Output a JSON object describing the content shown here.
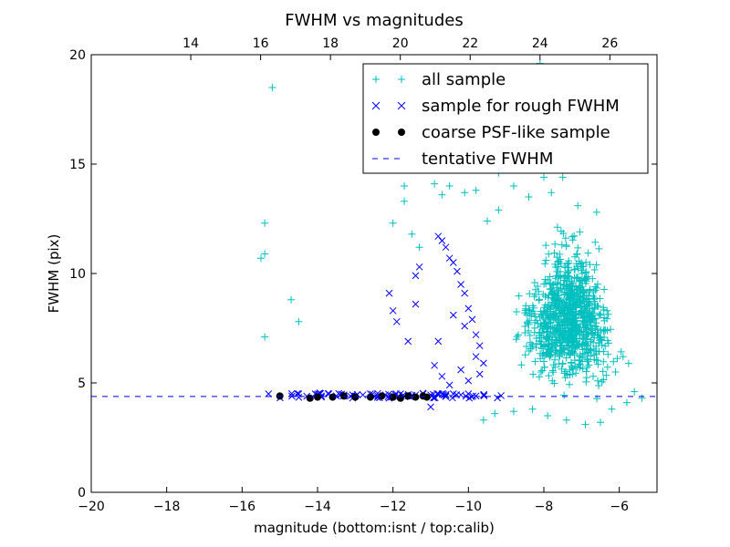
{
  "chart_data": {
    "type": "scatter",
    "title": "FWHM vs magnitudes",
    "xlabel": "magnitude (bottom:isnt / top:calib)",
    "ylabel": "FWHM (pix)",
    "xlim": [
      -20,
      -5
    ],
    "ylim": [
      0,
      20
    ],
    "top_xlim": [
      11.15,
      27.35
    ],
    "x_ticks": [
      "−20",
      "−18",
      "−16",
      "−14",
      "−12",
      "−10",
      "−8",
      "−6"
    ],
    "x_tick_values": [
      -20,
      -18,
      -16,
      -14,
      -12,
      -10,
      -8,
      -6
    ],
    "top_ticks": [
      "14",
      "16",
      "18",
      "20",
      "22",
      "24",
      "26"
    ],
    "top_tick_values": [
      14,
      16,
      18,
      20,
      22,
      24,
      26
    ],
    "y_ticks": [
      "0",
      "5",
      "10",
      "15",
      "20"
    ],
    "y_tick_values": [
      0,
      5,
      10,
      15,
      20
    ],
    "grid": false,
    "legend_position": "upper-right",
    "colors": {
      "all": "#00bfbf",
      "rough": "#0000ff",
      "coarse": "#000000",
      "fwhm": "#0000ff"
    },
    "legend": [
      {
        "label": "all sample",
        "marker": "plus",
        "key": "all"
      },
      {
        "label": "sample for rough FWHM",
        "marker": "x",
        "key": "rough"
      },
      {
        "label": "coarse PSF-like sample",
        "marker": "dot",
        "key": "coarse"
      },
      {
        "label": "tentative FWHM",
        "marker": "dash",
        "key": "fwhm"
      }
    ],
    "tentative_fwhm": 4.38,
    "series": [
      {
        "name": "all sample",
        "marker": "plus",
        "points": [
          [
            -15.2,
            18.5
          ],
          [
            -15.4,
            12.3
          ],
          [
            -15.4,
            10.9
          ],
          [
            -15.5,
            10.7
          ],
          [
            -15.4,
            7.1
          ],
          [
            -14.7,
            8.8
          ],
          [
            -14.5,
            7.8
          ],
          [
            -12,
            12.3
          ],
          [
            -11.7,
            14
          ],
          [
            -11.7,
            13.3
          ],
          [
            -11.5,
            11.8
          ],
          [
            -11.3,
            11.2
          ],
          [
            -10.9,
            14.1
          ],
          [
            -10.7,
            13.6
          ],
          [
            -10.5,
            14
          ],
          [
            -10.3,
            14.8
          ],
          [
            -10.1,
            13.7
          ],
          [
            -9.8,
            13.8
          ],
          [
            -9.5,
            12.4
          ],
          [
            -9.2,
            14.6
          ],
          [
            -9.2,
            12.9
          ],
          [
            -8.8,
            14
          ],
          [
            -8.4,
            13.5
          ],
          [
            -8.1,
            19.6
          ],
          [
            -8,
            14.4
          ],
          [
            -7.8,
            13.7
          ],
          [
            -7.5,
            14.4
          ],
          [
            -7.1,
            13.1
          ],
          [
            -6.6,
            12.8
          ],
          [
            -9.6,
            3.3
          ],
          [
            -9.3,
            3.6
          ],
          [
            -8.8,
            3.7
          ],
          [
            -8.3,
            3.8
          ],
          [
            -7.9,
            3.5
          ],
          [
            -7.4,
            3.3
          ],
          [
            -6.9,
            3.1
          ],
          [
            -6.5,
            3.2
          ],
          [
            -6.2,
            3.8
          ],
          [
            -5.8,
            4.1
          ],
          [
            -5.6,
            4.6
          ],
          [
            -5.4,
            4.3
          ],
          [
            -6.1,
            5.5
          ],
          [
            -6.3,
            6.3
          ],
          [
            -6.5,
            7.1
          ],
          [
            -6.7,
            7.9
          ],
          [
            -6.9,
            8.4
          ],
          [
            -5.9,
            6.2
          ]
        ]
      },
      {
        "name": "sample for rough FWHM",
        "marker": "x",
        "points": [
          [
            -15.3,
            4.5
          ],
          [
            -14.5,
            4.5
          ],
          [
            -13.9,
            4.4
          ],
          [
            -13.7,
            4.5
          ],
          [
            -13.5,
            4.4
          ],
          [
            -13.3,
            4.45
          ],
          [
            -13,
            4.4
          ],
          [
            -12.8,
            4.45
          ],
          [
            -12.6,
            4.5
          ],
          [
            -12.4,
            4.4
          ],
          [
            -12.2,
            4.45
          ],
          [
            -12,
            4.4
          ],
          [
            -11.8,
            4.5
          ],
          [
            -11.6,
            4.4
          ],
          [
            -11.4,
            4.45
          ],
          [
            -11.2,
            4.5
          ],
          [
            -11,
            4.45
          ],
          [
            -10.8,
            4.5
          ],
          [
            -10.6,
            4.4
          ],
          [
            -10.4,
            4.5
          ],
          [
            -10.2,
            4.45
          ],
          [
            -10,
            4.5
          ],
          [
            -9.8,
            4.4
          ],
          [
            -9.6,
            4.45
          ],
          [
            -12.1,
            9.1
          ],
          [
            -12,
            8.3
          ],
          [
            -11.9,
            7.8
          ],
          [
            -11.6,
            6.9
          ],
          [
            -11.4,
            9.9
          ],
          [
            -11.3,
            10.3
          ],
          [
            -11.4,
            8.6
          ],
          [
            -10.8,
            11.7
          ],
          [
            -10.7,
            11.5
          ],
          [
            -10.6,
            11.2
          ],
          [
            -10.5,
            10.7
          ],
          [
            -10.4,
            10.5
          ],
          [
            -10.3,
            10.1
          ],
          [
            -10.2,
            9.5
          ],
          [
            -10.1,
            9.1
          ],
          [
            -10,
            8.4
          ],
          [
            -9.9,
            7.9
          ],
          [
            -9.8,
            7.2
          ],
          [
            -9.7,
            6.7
          ],
          [
            -9.6,
            5.9
          ],
          [
            -10.8,
            6.9
          ],
          [
            -10.9,
            5.8
          ],
          [
            -10.7,
            5.3
          ],
          [
            -10.5,
            4.9
          ],
          [
            -10.2,
            5.6
          ],
          [
            -10,
            5.1
          ],
          [
            -9.8,
            6.2
          ],
          [
            -9.7,
            5.4
          ],
          [
            -10.4,
            8.1
          ],
          [
            -10.1,
            7.6
          ],
          [
            -11,
            3.9
          ]
        ]
      },
      {
        "name": "coarse PSF-like sample",
        "marker": "dot",
        "points": [
          [
            -15,
            4.4
          ],
          [
            -14.2,
            4.3
          ],
          [
            -14,
            4.35
          ],
          [
            -13.6,
            4.35
          ],
          [
            -13.3,
            4.4
          ],
          [
            -13,
            4.35
          ],
          [
            -12.6,
            4.35
          ],
          [
            -12.3,
            4.4
          ],
          [
            -12,
            4.35
          ],
          [
            -11.8,
            4.3
          ],
          [
            -11.6,
            4.4
          ],
          [
            -11.4,
            4.35
          ],
          [
            -11.2,
            4.4
          ],
          [
            -11.1,
            4.35
          ]
        ]
      }
    ],
    "cloud": {
      "x_min": -9.5,
      "x_max": -5.2,
      "y_min": 3.5,
      "y_max": 14.5,
      "count": 950
    }
  }
}
